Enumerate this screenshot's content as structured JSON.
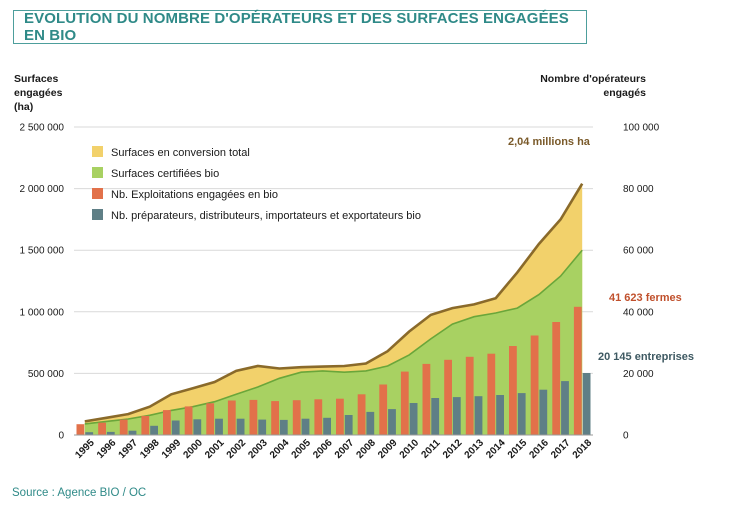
{
  "header": {
    "title": "EVOLUTION DU NOMBRE D'OPÉRATEURS ET DES SURFACES ENGAGÉES EN BIO"
  },
  "footer": {
    "source": "Source : Agence BIO / OC"
  },
  "colors": {
    "conversion": "#f2d16b",
    "certifiees": "#a8d162",
    "outline": "#8a6a2a",
    "exploitations": "#e2714a",
    "preparateurs": "#5f7f86",
    "annot_farms": "#c0502c",
    "annot_enterprises": "#3e5962",
    "annot_total": "#7a5a2a",
    "title": "#2f8a88"
  },
  "chart_data": {
    "type": "bar",
    "title": "EVOLUTION DU NOMBRE D'OPÉRATEURS ET DES SURFACES ENGAGÉES EN BIO",
    "ylabel_left": "Surfaces engagées (ha)",
    "ylabel_right": "Nombre d'opérateurs engagés",
    "ylim_left": [
      0,
      2500000
    ],
    "ylim_right": [
      0,
      100000
    ],
    "left_ticks": [
      "0",
      "500 000",
      "1 000 000",
      "1 500 000",
      "2 000 000",
      "2 500 000"
    ],
    "right_ticks": [
      "0",
      "20 000",
      "40 000",
      "60 000",
      "80 000",
      "100 000"
    ],
    "categories": [
      "1995",
      "1996",
      "1997",
      "1998",
      "1999",
      "2000",
      "2001",
      "2002",
      "2003",
      "2004",
      "2005",
      "2006",
      "2007",
      "2008",
      "2009",
      "2010",
      "2011",
      "2012",
      "2013",
      "2014",
      "2015",
      "2016",
      "2017",
      "2018"
    ],
    "grid": "horizontal",
    "legend_position": "top-left",
    "series": [
      {
        "name": "Surfaces en conversion total",
        "kind": "area",
        "axis": "left",
        "values": [
          110000,
          140000,
          170000,
          230000,
          330000,
          380000,
          430000,
          520000,
          560000,
          540000,
          550000,
          555000,
          560000,
          580000,
          680000,
          840000,
          975000,
          1030000,
          1060000,
          1110000,
          1320000,
          1550000,
          1750000,
          2040000
        ]
      },
      {
        "name": "Surfaces certifiées bio",
        "kind": "area",
        "axis": "left",
        "values": [
          90000,
          110000,
          130000,
          160000,
          200000,
          230000,
          270000,
          330000,
          390000,
          460000,
          510000,
          520000,
          510000,
          520000,
          560000,
          650000,
          780000,
          900000,
          960000,
          990000,
          1030000,
          1140000,
          1290000,
          1500000
        ]
      },
      {
        "name": "Nb. Exploitations engagées en bio",
        "kind": "bar",
        "axis": "right",
        "values": [
          3500,
          4000,
          5000,
          6200,
          8100,
          9300,
          10300,
          11200,
          11400,
          11000,
          11300,
          11600,
          11800,
          13200,
          16400,
          20600,
          23100,
          24400,
          25400,
          26400,
          28900,
          32300,
          36700,
          41623
        ]
      },
      {
        "name": "Nb. préparateurs, distributeurs, importateurs et exportateurs bio",
        "kind": "bar",
        "axis": "right",
        "values": [
          900,
          1000,
          1400,
          3000,
          4700,
          5100,
          5300,
          5300,
          5000,
          4900,
          5300,
          5600,
          6500,
          7500,
          8400,
          10400,
          12000,
          12300,
          12600,
          13000,
          13600,
          14700,
          17500,
          20145
        ]
      }
    ],
    "annotations": [
      {
        "text": "2,04 millions ha",
        "color_key": "annot_total"
      },
      {
        "text": "41 623 fermes",
        "color_key": "annot_farms"
      },
      {
        "text": "20 145 entreprises",
        "color_key": "annot_enterprises"
      }
    ]
  }
}
